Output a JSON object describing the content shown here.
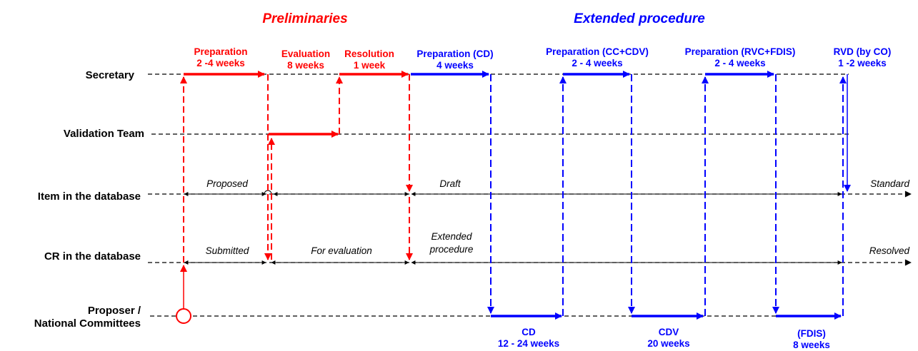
{
  "colors": {
    "red": "#ff0000",
    "blue": "#0000ff",
    "black": "#000000"
  },
  "phases": {
    "preliminaries": "Preliminaries",
    "extended": "Extended procedure"
  },
  "lanes": {
    "secretary": "Secretary",
    "validation": "Validation Team",
    "item": "Item in the database",
    "cr": "CR in the database",
    "proposer_1": "Proposer /",
    "proposer_2": "National Committees"
  },
  "steps": {
    "prep": {
      "name": "Preparation",
      "duration": "2 -4 weeks"
    },
    "evaluation": {
      "name": "Evaluation",
      "duration": "8 weeks"
    },
    "resolution": {
      "name": "Resolution",
      "duration": "1 week"
    },
    "prep_cd": {
      "name": "Preparation (CD)",
      "duration": "4 weeks"
    },
    "prep_cc": {
      "name": "Preparation (CC+CDV)",
      "duration": "2 - 4 weeks"
    },
    "prep_rvc": {
      "name": "Preparation (RVC+FDIS)",
      "duration": "2 - 4 weeks"
    },
    "rvd": {
      "name": "RVD (by CO)",
      "duration": "1 -2 weeks"
    },
    "cd": {
      "name": "CD",
      "duration": "12 - 24 weeks"
    },
    "cdv": {
      "name": "CDV",
      "duration": "20 weeks"
    },
    "fdis": {
      "name": "(FDIS)",
      "duration": "8 weeks"
    }
  },
  "states": {
    "proposed": "Proposed",
    "draft": "Draft",
    "standard": "Standard",
    "submitted": "Submitted",
    "for_evaluation": "For evaluation",
    "extended_1": "Extended",
    "extended_2": "procedure",
    "resolved": "Resolved"
  }
}
